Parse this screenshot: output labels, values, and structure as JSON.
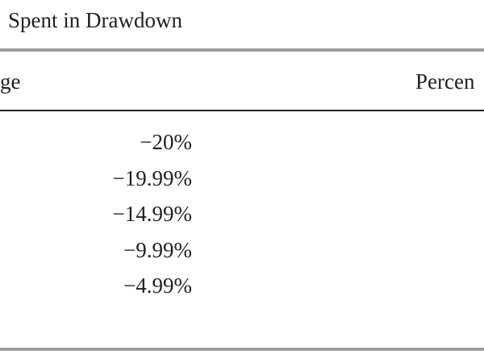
{
  "title": "Spent in Drawdown",
  "table": {
    "header": [
      "ge",
      "Percen"
    ],
    "rows": [
      [
        "−20%"
      ],
      [
        "−19.99%"
      ],
      [
        "−14.99%"
      ],
      [
        "−9.99%"
      ],
      [
        "−4.99%"
      ]
    ]
  }
}
